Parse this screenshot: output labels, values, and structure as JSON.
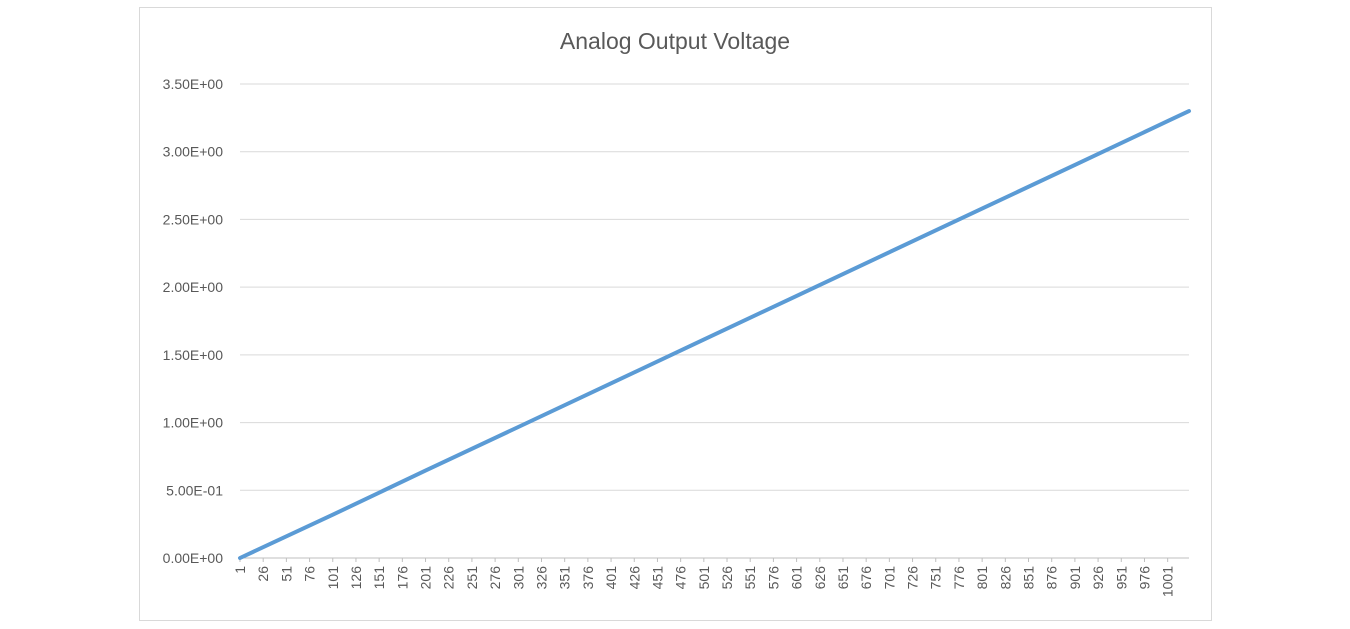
{
  "chart_data": {
    "type": "line",
    "title": "Analog Output Voltage",
    "xlabel": "",
    "ylabel": "",
    "x_range": [
      1,
      1024
    ],
    "ylim": [
      0,
      3.5
    ],
    "y_ticks": [
      "0.00E+00",
      "5.00E-01",
      "1.00E+00",
      "1.50E+00",
      "2.00E+00",
      "2.50E+00",
      "3.00E+00",
      "3.50E+00"
    ],
    "x_ticks": [
      "1",
      "26",
      "51",
      "76",
      "101",
      "126",
      "151",
      "176",
      "201",
      "226",
      "251",
      "276",
      "301",
      "326",
      "351",
      "376",
      "401",
      "426",
      "451",
      "476",
      "501",
      "526",
      "551",
      "576",
      "601",
      "626",
      "651",
      "676",
      "701",
      "726",
      "751",
      "776",
      "801",
      "826",
      "851",
      "876",
      "901",
      "926",
      "951",
      "976",
      "1001"
    ],
    "series": [
      {
        "color": "#5b9bd5",
        "x": [
          1,
          101,
          201,
          301,
          401,
          501,
          601,
          701,
          801,
          901,
          1001,
          1024
        ],
        "values": [
          0.0,
          0.32,
          0.645,
          0.967,
          1.29,
          1.613,
          1.935,
          2.258,
          2.58,
          2.903,
          3.226,
          3.3
        ]
      }
    ],
    "grid": true,
    "legend": "none"
  }
}
